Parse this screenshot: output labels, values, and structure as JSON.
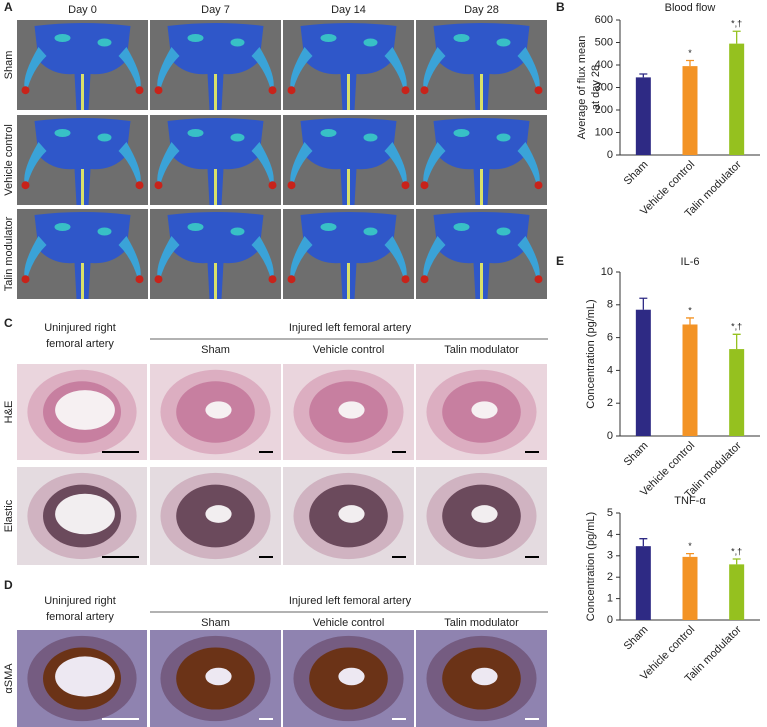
{
  "panels": {
    "A": {
      "letter": "A",
      "columns": [
        "Day 0",
        "Day 7",
        "Day 14",
        "Day 28"
      ],
      "rows": [
        "Sham",
        "Vehicle control",
        "Talin modulator"
      ]
    },
    "B": {
      "letter": "B"
    },
    "C": {
      "letter": "C",
      "uninjured": [
        "Uninjured right",
        "femoral artery"
      ],
      "injured": "Injured left femoral artery",
      "groups": [
        "Sham",
        "Vehicle control",
        "Talin modulator"
      ],
      "rows": [
        "H&E",
        "Elastic"
      ]
    },
    "D": {
      "letter": "D",
      "uninjured": [
        "Uninjured right",
        "femoral artery"
      ],
      "injured": "Injured left femoral artery",
      "groups": [
        "Sham",
        "Vehicle control",
        "Talin modulator"
      ],
      "rows": [
        "αSMA"
      ]
    },
    "E": {
      "letter": "E"
    }
  },
  "chart_data": [
    {
      "type": "bar",
      "title": "Blood flow",
      "ylabel": [
        "Average of flux mean",
        "at day 28"
      ],
      "categories": [
        "Sham",
        "Vehicle control",
        "Talin modulator"
      ],
      "values": [
        345,
        395,
        495
      ],
      "errors": [
        15,
        25,
        55
      ],
      "colors": [
        "#2e2a84",
        "#f39325",
        "#95c11f"
      ],
      "markers": [
        null,
        "*",
        "*,†"
      ],
      "ylim": [
        0,
        600
      ],
      "yticks": [
        0,
        100,
        200,
        300,
        400,
        500,
        600
      ]
    },
    {
      "type": "bar",
      "title": "IL-6",
      "ylabel": [
        "Concentration (pg/mL)"
      ],
      "categories": [
        "Sham",
        "Vehicle control",
        "Talin modulator"
      ],
      "values": [
        7.7,
        6.8,
        5.3
      ],
      "errors": [
        0.7,
        0.4,
        0.9
      ],
      "colors": [
        "#2e2a84",
        "#f39325",
        "#95c11f"
      ],
      "markers": [
        null,
        "*",
        "*,†"
      ],
      "ylim": [
        0,
        10
      ],
      "yticks": [
        0,
        2,
        4,
        6,
        8,
        10
      ]
    },
    {
      "type": "bar",
      "title": "TNF-α",
      "ylabel": [
        "Concentration (pg/mL)"
      ],
      "categories": [
        "Sham",
        "Vehicle control",
        "Talin modulator"
      ],
      "values": [
        3.45,
        2.95,
        2.6
      ],
      "errors": [
        0.35,
        0.15,
        0.25
      ],
      "colors": [
        "#2e2a84",
        "#f39325",
        "#95c11f"
      ],
      "markers": [
        null,
        "*",
        "*,†"
      ],
      "ylim": [
        0,
        5
      ],
      "yticks": [
        0,
        1,
        2,
        3,
        4,
        5
      ]
    }
  ]
}
